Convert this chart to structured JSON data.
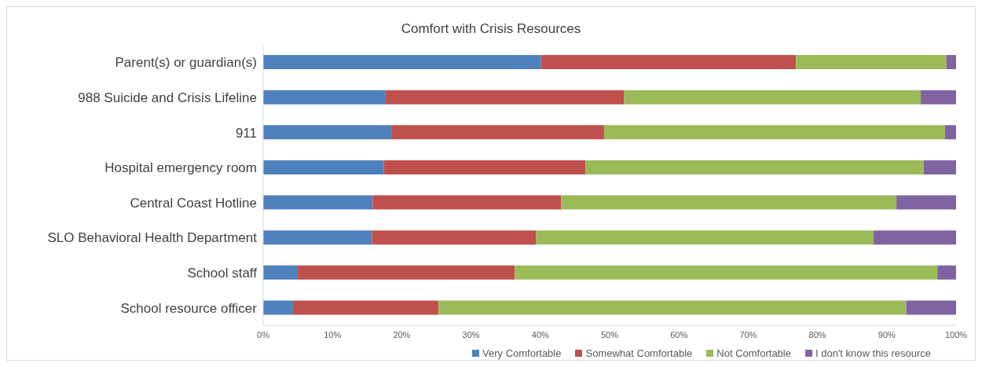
{
  "chart_data": {
    "type": "bar",
    "orientation": "horizontal",
    "stacked": true,
    "title": "Comfort with Crisis Resources",
    "categories": [
      "Parent(s) or guardian(s)",
      "988 Suicide and Crisis Lifeline",
      "911",
      "Hospital emergency room",
      "Central Coast Hotline",
      "SLO Behavioral Health Department",
      "School staff",
      "School resource officer"
    ],
    "series": [
      {
        "name": "Very Comfortable",
        "color": "#4f81bd",
        "values": [
          40.1,
          17.7,
          18.5,
          17.4,
          15.8,
          15.7,
          5.0,
          4.3
        ]
      },
      {
        "name": "Somewhat Comfortable",
        "color": "#c0504d",
        "values": [
          36.8,
          34.4,
          30.7,
          29.1,
          27.2,
          23.7,
          31.3,
          21.0
        ]
      },
      {
        "name": "Not Comfortable",
        "color": "#9bbb59",
        "values": [
          21.7,
          42.8,
          49.2,
          48.8,
          48.4,
          48.7,
          61.0,
          67.5
        ]
      },
      {
        "name": "I don't know this resource",
        "color": "#8064a2",
        "values": [
          1.4,
          5.1,
          1.6,
          4.7,
          8.6,
          11.9,
          2.7,
          7.2
        ]
      }
    ],
    "xlim": [
      0,
      100
    ],
    "xticks": [
      {
        "value": 0,
        "label": "0%"
      },
      {
        "value": 10,
        "label": "10%"
      },
      {
        "value": 20,
        "label": "20%"
      },
      {
        "value": 30,
        "label": "30%"
      },
      {
        "value": 40,
        "label": "40%"
      },
      {
        "value": 50,
        "label": "50%"
      },
      {
        "value": 60,
        "label": "60%"
      },
      {
        "value": 70,
        "label": "70%"
      },
      {
        "value": 80,
        "label": "80%"
      },
      {
        "value": 90,
        "label": "90%"
      },
      {
        "value": 100,
        "label": "100%"
      }
    ],
    "grid": false,
    "legend": "bottom"
  }
}
